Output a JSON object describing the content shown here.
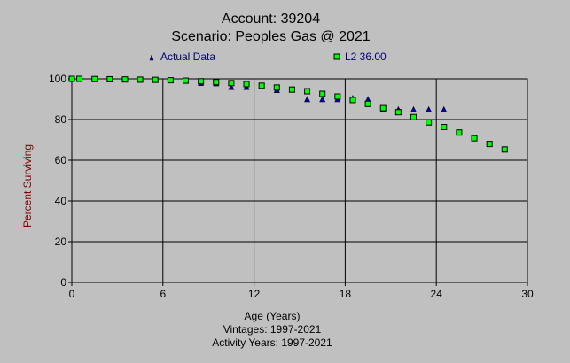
{
  "chart_data": {
    "type": "scatter",
    "title": "Account: 39204",
    "subtitle": "Scenario: Peoples Gas @ 2021",
    "xlabel": "Age (Years)",
    "ylabel": "Percent Surviving",
    "footnotes": [
      "Vintages: 1997-2021",
      "Activity Years: 1997-2021"
    ],
    "xlim": [
      0,
      30
    ],
    "ylim": [
      0,
      100
    ],
    "xticks": [
      0,
      6,
      12,
      18,
      24,
      30
    ],
    "yticks": [
      0,
      20,
      40,
      60,
      80,
      100
    ],
    "grid": true,
    "legend_position": "top",
    "series": [
      {
        "name": "Actual Data",
        "marker": "triangle",
        "color": "#0000c0",
        "x": [
          0,
          0.5,
          1.5,
          2.5,
          3.5,
          4.5,
          5.5,
          6.5,
          7.5,
          8.5,
          9.5,
          10.5,
          11.5,
          12.5,
          13.5,
          14.5,
          15.5,
          16.5,
          17.5,
          18.5,
          19.5,
          20.5,
          21.5,
          22.5,
          23.5,
          24.5
        ],
        "y": [
          100,
          100,
          99.9,
          99.8,
          99.7,
          99.6,
          99.5,
          99.3,
          99.1,
          98,
          97.8,
          96,
          96,
          96.5,
          94.5,
          94.8,
          90,
          90,
          90,
          90.5,
          90,
          85,
          85,
          85,
          85,
          85
        ]
      },
      {
        "name": "L2 36.00",
        "marker": "square",
        "color": "#00ff00",
        "x": [
          0,
          0.5,
          1.5,
          2.5,
          3.5,
          4.5,
          5.5,
          6.5,
          7.5,
          8.5,
          9.5,
          10.5,
          11.5,
          12.5,
          13.5,
          14.5,
          15.5,
          16.5,
          17.5,
          18.5,
          19.5,
          20.5,
          21.5,
          22.5,
          23.5,
          24.5,
          25.5,
          26.5,
          27.5,
          28.5
        ],
        "y": [
          100,
          100,
          99.9,
          99.8,
          99.7,
          99.6,
          99.5,
          99.3,
          99.1,
          98.8,
          98.4,
          97.9,
          97.4,
          96.6,
          95.7,
          94.7,
          93.9,
          92.6,
          91.3,
          89.6,
          87.7,
          85.6,
          83.6,
          81.2,
          78.6,
          76.3,
          73.6,
          70.8,
          68.0,
          65.3
        ]
      }
    ]
  }
}
